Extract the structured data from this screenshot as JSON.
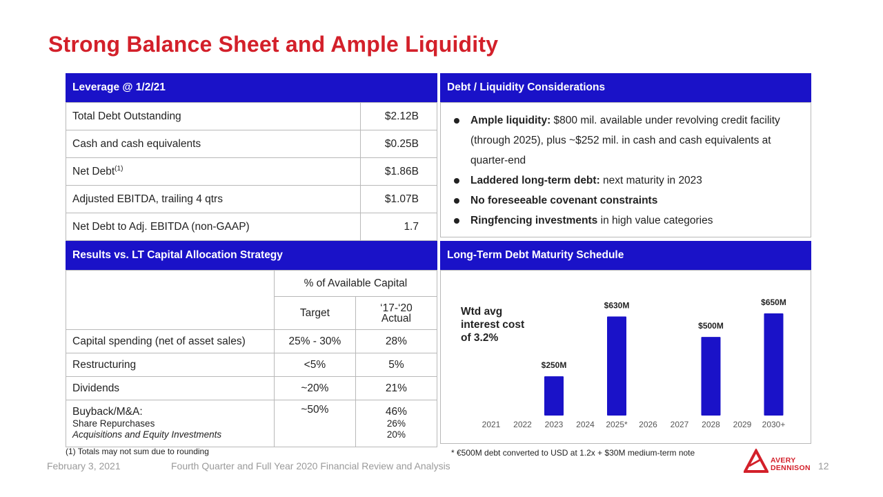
{
  "title": "Strong Balance Sheet and Ample Liquidity",
  "leverage": {
    "header": "Leverage @ 1/2/21",
    "rows": [
      {
        "label": "Total Debt Outstanding",
        "value": "$2.12B"
      },
      {
        "label": "Cash and cash equivalents",
        "value": "$0.25B"
      },
      {
        "label": "Net Debt",
        "sup": "(1)",
        "value": "$1.86B"
      },
      {
        "label": "Adjusted EBITDA, trailing 4 qtrs",
        "value": "$1.07B"
      },
      {
        "label": "Net Debt to Adj. EBITDA (non-GAAP)",
        "value": "1.7"
      }
    ]
  },
  "considerations": {
    "header": "Debt / Liquidity Considerations",
    "items": [
      {
        "bold": "Ample liquidity:",
        "text": " $800 mil. available under revolving credit facility (through 2025), plus ~$252 mil. in cash and cash equivalents at quarter-end"
      },
      {
        "bold": "Laddered long-term debt:",
        "text": " next maturity in 2023"
      },
      {
        "bold": "No foreseeable covenant constraints",
        "text": ""
      },
      {
        "bold": "Ringfencing investments",
        "text": " in high value categories"
      }
    ]
  },
  "results": {
    "header": "Results vs. LT Capital Allocation Strategy",
    "group_header": "% of Available Capital",
    "col_target": "Target",
    "col_actual_line1": "‘17-‘20",
    "col_actual_line2": "Actual",
    "rows": [
      {
        "label": "Capital spending (net of asset sales)",
        "target": "25% - 30%",
        "actual": "28%"
      },
      {
        "label": "Restructuring",
        "target": "<5%",
        "actual": "5%"
      },
      {
        "label": "Dividends",
        "target": "~20%",
        "actual": "21%"
      }
    ],
    "last_row": {
      "label": "Buyback/M&A:",
      "sub1": "Share Repurchases",
      "sub2": "Acquisitions and Equity Investments",
      "target": "~50%",
      "actual": "46%",
      "actual_sub1": "26%",
      "actual_sub2": "20%"
    },
    "footnote": "(1) Totals may not sum due to rounding"
  },
  "maturity": {
    "header": "Long-Term Debt Maturity Schedule",
    "annotation_line1": "Wtd avg",
    "annotation_line2": "interest cost",
    "annotation_line3": "of 3.2%",
    "footnote": "* €500M debt converted to USD at 1.2x + $30M medium-term note"
  },
  "chart_data": {
    "type": "bar",
    "categories": [
      "2021",
      "2022",
      "2023",
      "2024",
      "2025*",
      "2026",
      "2027",
      "2028",
      "2029",
      "2030+"
    ],
    "values": [
      0,
      0,
      250,
      0,
      630,
      0,
      0,
      500,
      0,
      650
    ],
    "data_labels": [
      "",
      "",
      "$250M",
      "",
      "$630M",
      "",
      "",
      "$500M",
      "",
      "$650M"
    ],
    "unit": "$M",
    "grid": false,
    "color": "#1a12c8"
  },
  "footer": {
    "date": "February 3, 2021",
    "subtitle": "Fourth Quarter and Full Year 2020 Financial Review and Analysis",
    "page": "12",
    "logo_line1": "AVERY",
    "logo_line2": "DENNISON"
  },
  "colors": {
    "accent_red": "#d3202a",
    "header_blue": "#1a12c8"
  }
}
